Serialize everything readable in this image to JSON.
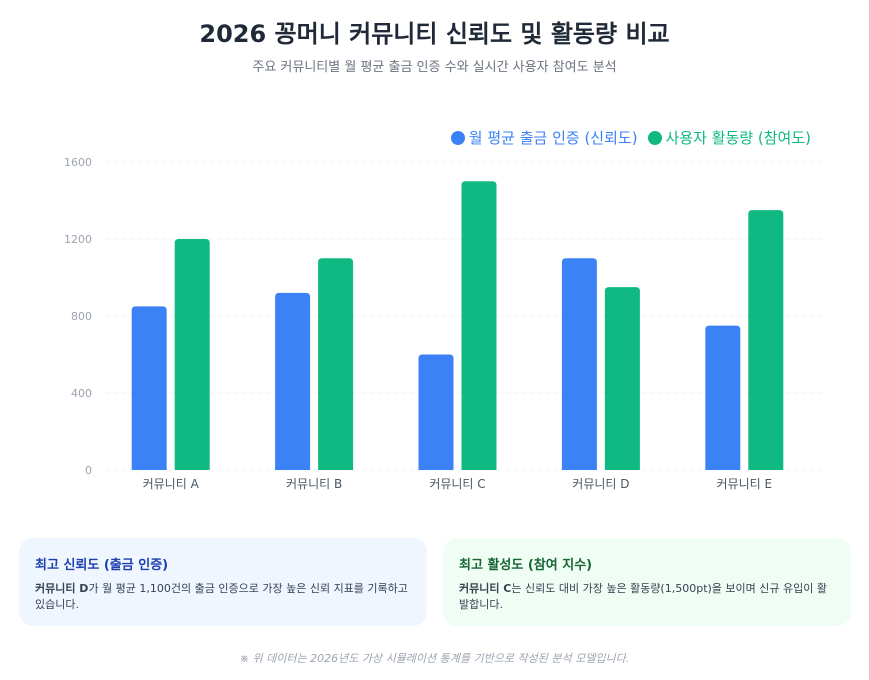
{
  "header": {
    "title": "2026 꽁머니 커뮤니티 신뢰도 및 활동량 비교",
    "subtitle": "주요 커뮤니티별 월 평균 출금 인증 수와 실시간 사용자 참여도 분석"
  },
  "chart_data": {
    "type": "bar",
    "categories": [
      "커뮤니티 A",
      "커뮤니티 B",
      "커뮤니티 C",
      "커뮤니티 D",
      "커뮤니티 E"
    ],
    "series": [
      {
        "name": "월 평균 출금 인증 (신뢰도)",
        "color": "#3b82f6",
        "values": [
          850,
          920,
          600,
          1100,
          750
        ]
      },
      {
        "name": "사용자 활동량 (참여도)",
        "color": "#10b981",
        "values": [
          1200,
          1100,
          1500,
          950,
          1350
        ]
      }
    ],
    "ylim": [
      0,
      1600
    ],
    "yticks": [
      "0",
      "400",
      "800",
      "1200",
      "1600"
    ],
    "grid": true,
    "legend": "top-right"
  },
  "cards": [
    {
      "title": "최고 신뢰도 (출금 인증)",
      "bold": "커뮤니티 D",
      "text": "가 월 평균 1,100건의 출금 인증으로 가장 높은 신뢰 지표를 기록하고 있습니다."
    },
    {
      "title": "최고 활성도 (참여 지수)",
      "bold": "커뮤니티 C",
      "text": "는 신뢰도 대비 가장 높은 활동량(1,500pt)을 보이며 신규 유입이 활발합니다."
    }
  ],
  "footnote": "※ 위 데이터는 2026년도 가상 시뮬레이션 통계를 기반으로 작성된 분석 모델입니다."
}
